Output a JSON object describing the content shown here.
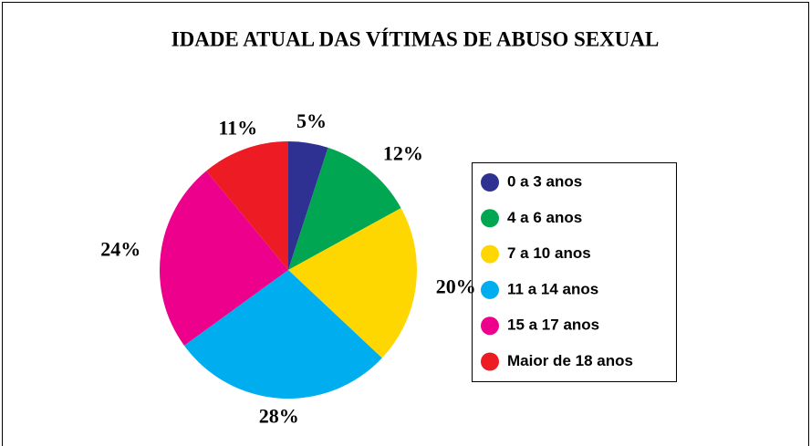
{
  "chart_data": {
    "type": "pie",
    "title": "IDADE ATUAL DAS VÍTIMAS DE ABUSO SEXUAL",
    "categories": [
      "0 a 3 anos",
      "4 a 6 anos",
      "7 a 10 anos",
      "11 a 14 anos",
      "15 a 17 anos",
      "Maior de 18 anos"
    ],
    "values": [
      5,
      12,
      20,
      28,
      24,
      11
    ],
    "value_labels": [
      "5%",
      "12%",
      "20%",
      "28%",
      "24%",
      "11%"
    ],
    "colors": [
      "#2e3192",
      "#00a651",
      "#ffd700",
      "#00aeef",
      "#ec008c",
      "#ed1c24"
    ],
    "legend": "right"
  }
}
